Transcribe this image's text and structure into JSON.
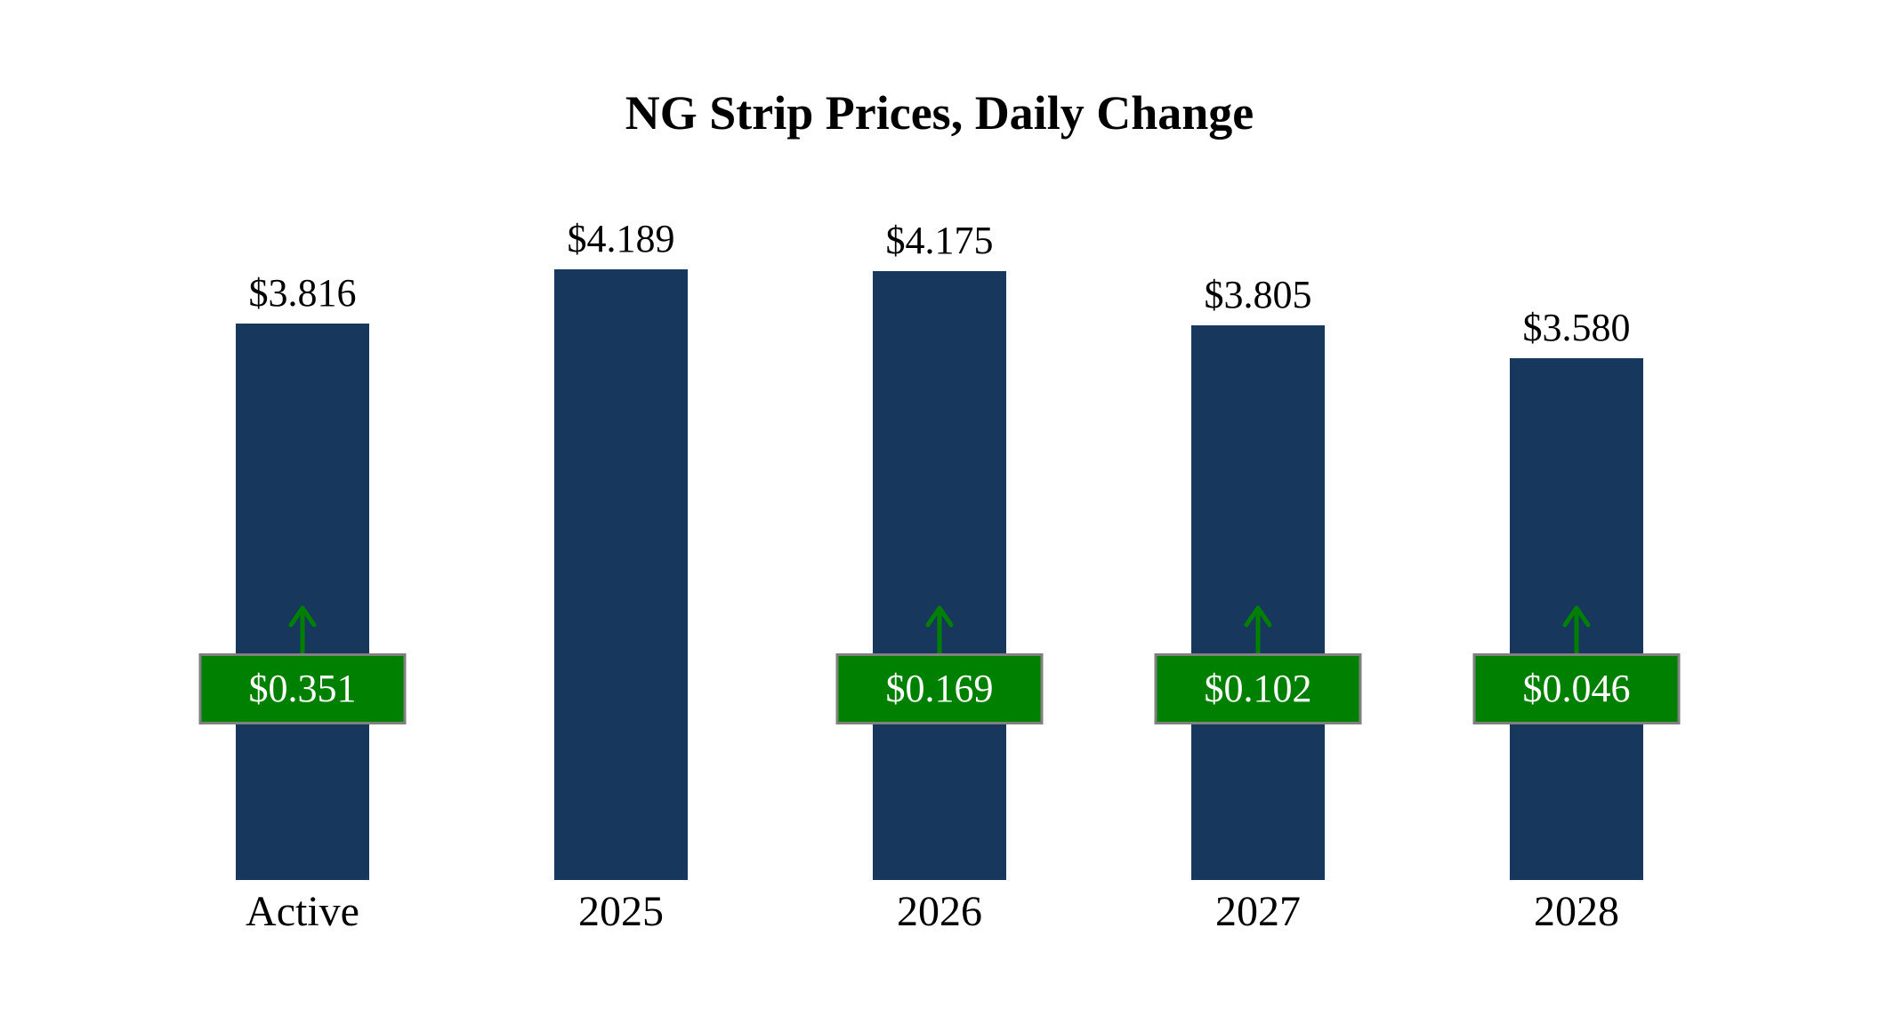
{
  "chart_data": {
    "type": "bar",
    "title": "NG Strip Prices, Daily Change",
    "categories": [
      "Active",
      "2025",
      "2026",
      "2027",
      "2028"
    ],
    "series": [
      {
        "name": "NG Strip Price",
        "values": [
          3.816,
          4.189,
          4.175,
          3.805,
          3.58
        ]
      }
    ],
    "bar_value_labels": [
      "$3.816",
      "$4.189",
      "$4.175",
      "$3.805",
      "$3.580"
    ],
    "daily_changes": [
      {
        "label": "$0.351",
        "value": 0.351,
        "direction": "up"
      },
      null,
      {
        "label": "$0.169",
        "value": 0.169,
        "direction": "up"
      },
      {
        "label": "$0.102",
        "value": 0.102,
        "direction": "up"
      },
      {
        "label": "$0.046",
        "value": 0.046,
        "direction": "up"
      }
    ],
    "ylim": [
      0,
      4.189
    ],
    "xlabel": "",
    "ylabel": "",
    "grid": false,
    "legend": false,
    "colors": {
      "bar": "#17375d",
      "badge_bg": "#008000",
      "badge_border": "#808080",
      "badge_text": "#ffffff",
      "arrow": "#008000",
      "text": "#000000",
      "background": "#ffffff"
    }
  }
}
